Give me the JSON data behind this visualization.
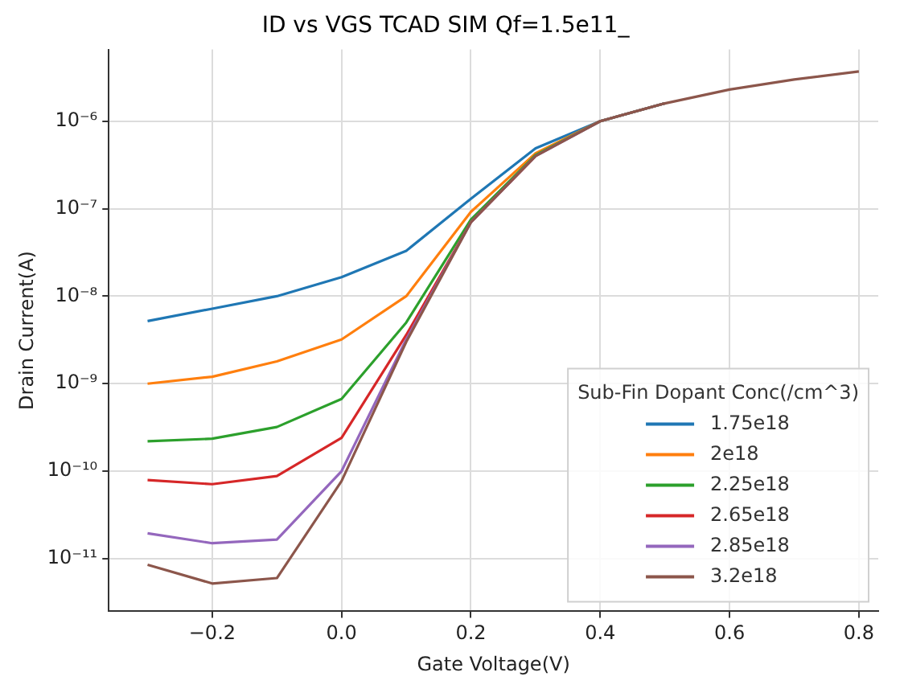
{
  "chart_data": {
    "type": "line",
    "title": "ID vs VGS TCAD SIM Qf=1.5e11_",
    "xlabel": "Gate Voltage(V)",
    "ylabel": "Drain Current(A)",
    "legend_title": "Sub-Fin Dopant Conc(/cm^3)",
    "legend": "bottom right",
    "grid": true,
    "log": "y",
    "marker": "none",
    "line_style": "solid",
    "x": [
      -0.3,
      -0.2,
      -0.1,
      0,
      0.1,
      0.2,
      0.3,
      0.4,
      0.5,
      0.6,
      0.7,
      0.8
    ],
    "xlim": [
      -0.36,
      0.83
    ],
    "xticks": [
      {
        "value": -0.2,
        "label": "−0.2"
      },
      {
        "value": 0,
        "label": "0.0"
      },
      {
        "value": 0.2,
        "label": "0.2"
      },
      {
        "value": 0.4,
        "label": "0.4"
      },
      {
        "value": 0.6,
        "label": "0.6"
      },
      {
        "value": 0.8,
        "label": "0.8"
      }
    ],
    "ylim": [
      2.5e-12,
      6.6e-06
    ],
    "yticks": [
      {
        "value": 1e-11,
        "label": "10⁻¹¹"
      },
      {
        "value": 1e-10,
        "label": "10⁻¹⁰"
      },
      {
        "value": 1e-09,
        "label": "10⁻⁹"
      },
      {
        "value": 1e-08,
        "label": "10⁻⁸"
      },
      {
        "value": 1e-07,
        "label": "10⁻⁷"
      },
      {
        "value": 1e-06,
        "label": "10⁻⁶"
      }
    ],
    "series": [
      {
        "name": "1.75e18",
        "color": "#1f77b4",
        "values": [
          5.2e-09,
          7.2e-09,
          1e-08,
          1.65e-08,
          3.3e-08,
          1.3e-07,
          4.9e-07,
          1e-06,
          1.6e-06,
          null,
          null,
          null
        ]
      },
      {
        "name": "2e18",
        "color": "#ff7f0e",
        "values": [
          1e-09,
          1.2e-09,
          1.8e-09,
          3.2e-09,
          1e-08,
          9.2e-08,
          4.3e-07,
          1e-06,
          1.6e-06,
          null,
          null,
          null
        ]
      },
      {
        "name": "2.25e18",
        "color": "#2ca02c",
        "values": [
          2.2e-10,
          2.35e-10,
          3.2e-10,
          6.7e-10,
          5e-09,
          7.5e-08,
          4.1e-07,
          1e-06,
          1.6e-06,
          null,
          null,
          null
        ]
      },
      {
        "name": "2.65e18",
        "color": "#d62728",
        "values": [
          7.9e-11,
          7.1e-11,
          8.8e-11,
          2.4e-10,
          3.6e-09,
          7e-08,
          4e-07,
          null,
          null,
          null,
          null,
          null
        ]
      },
      {
        "name": "2.85e18",
        "color": "#9467bd",
        "values": [
          1.95e-11,
          1.5e-11,
          1.65e-11,
          1e-10,
          3.2e-09,
          7e-08,
          4e-07,
          1e-06,
          1.6e-06,
          null,
          null,
          null
        ]
      },
      {
        "name": "3.2e18",
        "color": "#8c564b",
        "values": [
          8.5e-12,
          5.2e-12,
          6e-12,
          7.7e-11,
          3e-09,
          7e-08,
          4e-07,
          1e-06,
          1.6e-06,
          2.3e-06,
          3e-06,
          3.7e-06
        ]
      }
    ]
  }
}
